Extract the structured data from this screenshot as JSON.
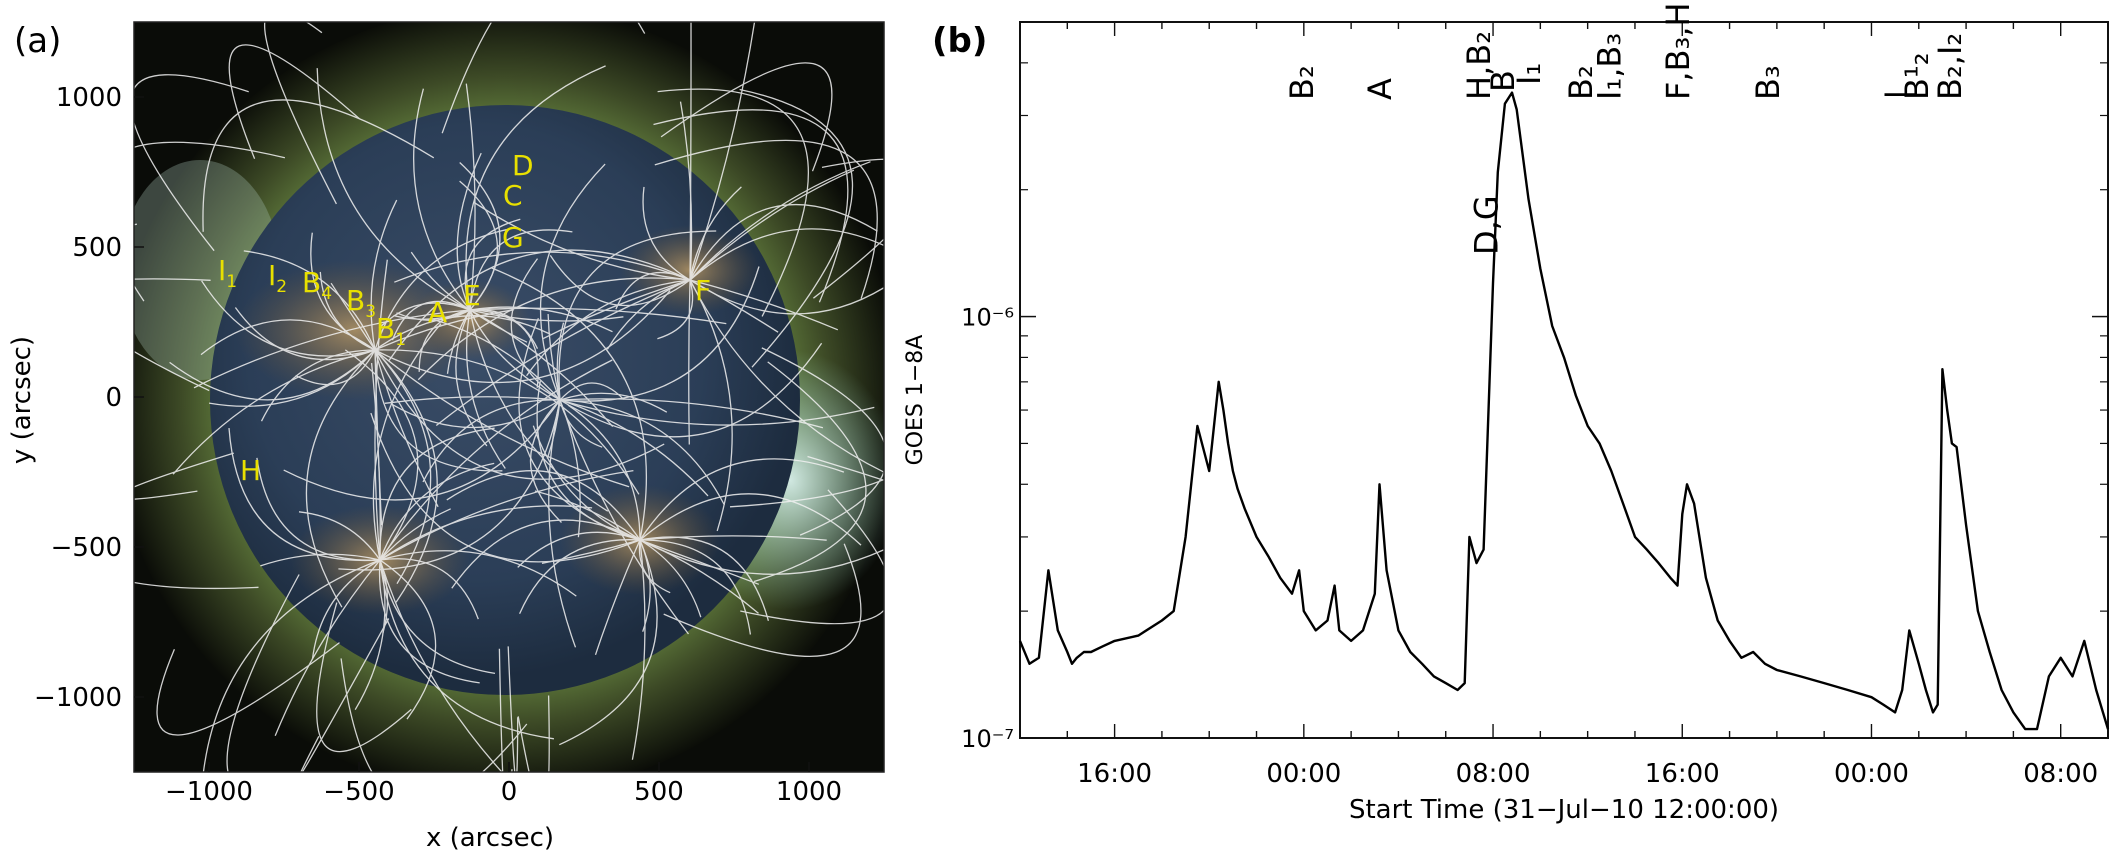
{
  "panel_a": {
    "label": "(a)",
    "xlabel": "x (arcsec)",
    "ylabel": "y (arcsec)",
    "x_ticks": [
      "−1000",
      "−500",
      "0",
      "500",
      "1000"
    ],
    "y_ticks": [
      "1000",
      "500",
      "0",
      "−500",
      "−1000"
    ],
    "region_labels": [
      {
        "text": "I",
        "sub": "1"
      },
      {
        "text": "I",
        "sub": "2"
      },
      {
        "text": "B",
        "sub": "4"
      },
      {
        "text": "B",
        "sub": "3"
      },
      {
        "text": "B",
        "sub": "1"
      },
      {
        "text": "A",
        "sub": ""
      },
      {
        "text": "E",
        "sub": ""
      },
      {
        "text": "D",
        "sub": ""
      },
      {
        "text": "C",
        "sub": ""
      },
      {
        "text": "G",
        "sub": ""
      },
      {
        "text": "F",
        "sub": ""
      },
      {
        "text": "H",
        "sub": ""
      }
    ],
    "colors": {
      "label": "#e8e000",
      "fieldlines": "#f2f2f2"
    }
  },
  "panel_b": {
    "label": "(b)",
    "xlabel": "Start Time (31−Jul−10 12:00:00)",
    "ylabel": "GOES 1−8A",
    "x_tick_labels": [
      "16:00",
      "00:00",
      "08:00",
      "16:00",
      "00:00",
      "08:00"
    ],
    "y_tick_labels": [
      "10⁻⁷",
      "10⁻⁶"
    ],
    "event_labels": [
      {
        "text": "B₂",
        "hours": 12.0
      },
      {
        "text": "A",
        "hours": 15.3
      },
      {
        "text": "H,B₂",
        "hours": 19.5
      },
      {
        "text": "D,G",
        "hours": 19.8
      },
      {
        "text": "B",
        "hours": 20.5
      },
      {
        "text": "I₁",
        "hours": 21.6
      },
      {
        "text": "B₂",
        "hours": 23.8
      },
      {
        "text": "I₁,B₃",
        "hours": 25.0
      },
      {
        "text": "F,B₃,H",
        "hours": 27.9
      },
      {
        "text": "B₃",
        "hours": 31.7
      },
      {
        "text": "|",
        "hours": 37.2
      },
      {
        "text": "B¹₂",
        "hours": 38.0
      },
      {
        "text": "B₂,I₂",
        "hours": 39.4
      }
    ]
  },
  "chart_data": {
    "type": "line",
    "title": "",
    "xlabel": "Start Time (31−Jul−10 12:00:00)",
    "ylabel": "GOES 1−8A",
    "yscale": "log",
    "xlim_hours": [
      0,
      46
    ],
    "ylim": [
      1e-07,
      5e-06
    ],
    "series": [
      {
        "name": "GOES 1-8A flux",
        "x_hours": [
          0,
          0.4,
          0.8,
          1.2,
          1.6,
          2,
          2.2,
          2.4,
          2.7,
          3.0,
          3.5,
          4,
          5,
          6,
          6.5,
          7,
          7.5,
          8.0,
          8.4,
          8.6,
          8.8,
          9.0,
          9.2,
          9.5,
          10,
          10.5,
          11,
          11.5,
          11.8,
          12,
          12.5,
          13,
          13.3,
          13.5,
          14,
          14.5,
          15,
          15.2,
          15.5,
          16,
          16.5,
          17,
          17.5,
          18,
          18.5,
          18.8,
          19.0,
          19.3,
          19.6,
          20.0,
          20.2,
          20.5,
          20.8,
          21.0,
          21.5,
          22,
          22.5,
          23,
          23.5,
          24,
          24.5,
          25,
          25.5,
          26,
          26.5,
          27,
          27.5,
          27.8,
          28.0,
          28.2,
          28.5,
          29,
          29.5,
          30,
          30.5,
          31,
          31.5,
          32,
          33,
          34,
          35,
          36,
          36.5,
          37,
          37.3,
          37.6,
          38,
          38.3,
          38.6,
          38.8,
          39.0,
          39.2,
          39.4,
          39.6,
          40,
          40.5,
          41,
          41.5,
          42,
          42.5,
          43,
          43.5,
          44,
          44.5,
          45,
          45.5,
          46
        ],
        "values": [
          1.7e-07,
          1.5e-07,
          1.55e-07,
          2.5e-07,
          1.8e-07,
          1.6e-07,
          1.5e-07,
          1.55e-07,
          1.6e-07,
          1.6e-07,
          1.65e-07,
          1.7e-07,
          1.75e-07,
          1.9e-07,
          2e-07,
          3e-07,
          5.5e-07,
          4.3e-07,
          7e-07,
          6e-07,
          5e-07,
          4.3e-07,
          3.9e-07,
          3.5e-07,
          3e-07,
          2.7e-07,
          2.4e-07,
          2.2e-07,
          2.5e-07,
          2e-07,
          1.8e-07,
          1.9e-07,
          2.3e-07,
          1.8e-07,
          1.7e-07,
          1.8e-07,
          2.2e-07,
          4e-07,
          2.5e-07,
          1.8e-07,
          1.6e-07,
          1.5e-07,
          1.4e-07,
          1.35e-07,
          1.3e-07,
          1.35e-07,
          3e-07,
          2.6e-07,
          2.8e-07,
          1.2e-06,
          2.2e-06,
          3.2e-06,
          3.4e-06,
          3.1e-06,
          1.9e-06,
          1.3e-06,
          9.5e-07,
          8e-07,
          6.5e-07,
          5.5e-07,
          5e-07,
          4.3e-07,
          3.6e-07,
          3e-07,
          2.8e-07,
          2.6e-07,
          2.4e-07,
          2.3e-07,
          3.4e-07,
          4e-07,
          3.6e-07,
          2.4e-07,
          1.9e-07,
          1.7e-07,
          1.55e-07,
          1.6e-07,
          1.5e-07,
          1.45e-07,
          1.4e-07,
          1.35e-07,
          1.3e-07,
          1.25e-07,
          1.2e-07,
          1.15e-07,
          1.3e-07,
          1.8e-07,
          1.5e-07,
          1.3e-07,
          1.15e-07,
          1.2e-07,
          7.5e-07,
          6e-07,
          5e-07,
          4.9e-07,
          3.2e-07,
          2e-07,
          1.6e-07,
          1.3e-07,
          1.15e-07,
          1.05e-07,
          1.05e-07,
          1.4e-07,
          1.55e-07,
          1.4e-07,
          1.7e-07,
          1.3e-07,
          1.05e-07
        ]
      }
    ],
    "x_ticks": [
      {
        "hours": 4,
        "label": "16:00"
      },
      {
        "hours": 12,
        "label": "00:00"
      },
      {
        "hours": 20,
        "label": "08:00"
      },
      {
        "hours": 28,
        "label": "16:00"
      },
      {
        "hours": 36,
        "label": "00:00"
      },
      {
        "hours": 44,
        "label": "08:00"
      }
    ],
    "y_ticks": [
      {
        "value": 1e-07,
        "label": "10⁻⁷"
      },
      {
        "value": 1e-06,
        "label": "10⁻⁶"
      }
    ]
  }
}
